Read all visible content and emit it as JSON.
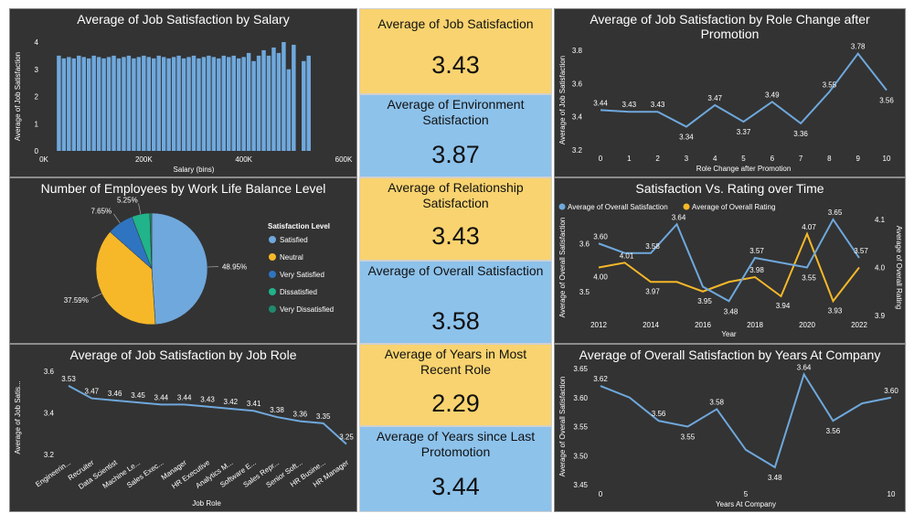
{
  "colors": {
    "blue": "#6fa8dc",
    "yellow": "#f6b829",
    "card_yellow": "#f9d36f",
    "card_blue": "#8dc2eb",
    "dark": "#333333"
  },
  "cards": [
    {
      "title": "Average of Job Satisfaction",
      "value": "3.43",
      "color": "#f9d36f"
    },
    {
      "title": "Average of Environment Satisfaction",
      "value": "3.87",
      "color": "#8dc2eb"
    },
    {
      "title": "Average of Relationship Satisfaction",
      "value": "3.43",
      "color": "#f9d36f"
    },
    {
      "title": "Average of Overall Satisfaction",
      "value": "3.58",
      "color": "#8dc2eb"
    },
    {
      "title": "Average of Years in Most Recent Role",
      "value": "2.29",
      "color": "#f9d36f"
    },
    {
      "title": "Average of Years since Last Protomotion",
      "value": "3.44",
      "color": "#8dc2eb"
    }
  ],
  "chart_data": [
    {
      "type": "bar",
      "title": "Average of Job Satisfaction by Salary",
      "xlabel": "Salary (bins)",
      "ylabel": "Average of Job Satisfaction",
      "xlim": [
        0,
        600000
      ],
      "ylim": [
        0,
        4
      ],
      "xticks": [
        "0K",
        "200K",
        "400K",
        "600K"
      ],
      "yticks": [
        "0",
        "1",
        "2",
        "3",
        "4"
      ],
      "bin_width": 10000,
      "x": [
        30000,
        40000,
        50000,
        60000,
        70000,
        80000,
        90000,
        100000,
        110000,
        120000,
        130000,
        140000,
        150000,
        160000,
        170000,
        180000,
        190000,
        200000,
        210000,
        220000,
        230000,
        240000,
        250000,
        260000,
        270000,
        280000,
        290000,
        300000,
        310000,
        320000,
        330000,
        340000,
        350000,
        360000,
        370000,
        380000,
        390000,
        400000,
        410000,
        420000,
        430000,
        440000,
        450000,
        460000,
        470000,
        480000,
        490000,
        500000,
        520000,
        530000
      ],
      "values": [
        3.5,
        3.4,
        3.45,
        3.4,
        3.5,
        3.45,
        3.4,
        3.5,
        3.45,
        3.4,
        3.45,
        3.5,
        3.4,
        3.45,
        3.5,
        3.4,
        3.45,
        3.5,
        3.45,
        3.4,
        3.5,
        3.45,
        3.4,
        3.45,
        3.5,
        3.4,
        3.45,
        3.5,
        3.4,
        3.45,
        3.5,
        3.45,
        3.4,
        3.5,
        3.45,
        3.5,
        3.4,
        3.45,
        3.6,
        3.3,
        3.5,
        3.7,
        3.5,
        3.8,
        3.6,
        4.0,
        3.0,
        3.9,
        3.3,
        3.5
      ]
    },
    {
      "type": "line",
      "title": "Average of Job Satisfaction by Role Change after Promotion",
      "xlabel": "Role Change after Promotion",
      "ylabel": "Average of Job Satisfaction",
      "x": [
        0,
        1,
        2,
        3,
        4,
        5,
        6,
        7,
        8,
        9,
        10
      ],
      "values": [
        3.44,
        3.43,
        3.43,
        3.34,
        3.47,
        3.37,
        3.49,
        3.36,
        3.55,
        3.78,
        3.56
      ],
      "labels": [
        "3.44",
        "3.43",
        "3.43",
        "3.34",
        "3.47",
        "3.37",
        "3.49",
        "3.36",
        "3.55",
        "3.78",
        "3.56"
      ],
      "ylim": [
        3.2,
        3.8
      ],
      "yticks": [
        "3.2",
        "3.4",
        "3.6",
        "3.8"
      ]
    },
    {
      "type": "pie",
      "title": "Number of Employees by Work Life Balance Level",
      "legend_title": "Satisfaction Level",
      "legend_position": "right",
      "slices": [
        {
          "name": "Satisfied",
          "value": 48.95,
          "label": "48.95%",
          "color": "#6fa8dc"
        },
        {
          "name": "Neutral",
          "value": 37.59,
          "label": "37.59%",
          "color": "#f6b829"
        },
        {
          "name": "Very Satisfied",
          "value": 7.65,
          "label": "7.65%",
          "color": "#2f74c0"
        },
        {
          "name": "Dissatisfied",
          "value": 5.25,
          "label": "5.25%",
          "color": "#21b38a"
        },
        {
          "name": "Very Dissatisfied",
          "value": 0.56,
          "label": "",
          "color": "#1f8a6e"
        }
      ]
    },
    {
      "type": "line",
      "title": "Satisfaction Vs. Rating over Time",
      "xlabel": "Year",
      "ylabel": "Average of Overall Satisfaction",
      "y2label": "Average of Overall Rating",
      "x": [
        2012,
        2013,
        2014,
        2015,
        2016,
        2017,
        2018,
        2019,
        2020,
        2021,
        2022
      ],
      "xticks": [
        "2012",
        "2014",
        "2016",
        "2018",
        "2020",
        "2022"
      ],
      "ylim": [
        3.45,
        3.65
      ],
      "yticks": [
        "3.5",
        "3.6"
      ],
      "y2lim": [
        3.9,
        4.1
      ],
      "y2ticks": [
        "3.9",
        "4.0",
        "4.1"
      ],
      "series": [
        {
          "name": "Average of Overall Satisfaction",
          "color": "#6fa8dc",
          "values": [
            3.6,
            3.58,
            3.58,
            3.64,
            3.51,
            3.48,
            3.57,
            3.56,
            3.55,
            3.65,
            3.57
          ],
          "labels": [
            "3.60",
            "",
            "3.58",
            "3.64",
            "",
            "3.48",
            "3.57",
            "",
            "3.55",
            "3.65",
            "3.57"
          ]
        },
        {
          "name": "Average of Overall Rating",
          "color": "#f6b829",
          "values": [
            4.0,
            4.01,
            3.97,
            3.97,
            3.95,
            3.97,
            3.98,
            3.94,
            4.07,
            3.93,
            4.0
          ],
          "labels": [
            "4.00",
            "4.01",
            "3.97",
            "",
            "3.95",
            "",
            "3.98",
            "3.94",
            "4.07",
            "3.93",
            ""
          ]
        }
      ]
    },
    {
      "type": "line",
      "title": "Average of Job Satisfaction by Job Role",
      "xlabel": "Job Role",
      "ylabel": "Average of Job Satis...",
      "categories": [
        "Engineerin...",
        "Recruiter",
        "Data Scientist",
        "Machine Le...",
        "Sales Exec...",
        "Manager",
        "HR Executive",
        "Analytics M...",
        "Software E...",
        "Sales Repr...",
        "Senior Soft...",
        "HR Busine...",
        "HR Manager"
      ],
      "values": [
        3.53,
        3.47,
        3.46,
        3.45,
        3.44,
        3.44,
        3.43,
        3.42,
        3.41,
        3.38,
        3.36,
        3.35,
        3.25
      ],
      "labels": [
        "3.53",
        "3.47",
        "3.46",
        "3.45",
        "3.44",
        "3.44",
        "3.43",
        "3.42",
        "3.41",
        "3.38",
        "3.36",
        "3.35",
        "3.25"
      ],
      "ylim": [
        3.2,
        3.6
      ],
      "yticks": [
        "3.2",
        "3.4",
        "3.6"
      ]
    },
    {
      "type": "line",
      "title": "Average of Overall Satisfaction by Years At Company",
      "xlabel": "Years At Company",
      "ylabel": "Average of Overall Satisfaction",
      "x": [
        0,
        1,
        2,
        3,
        4,
        5,
        6,
        7,
        8,
        9,
        10
      ],
      "values": [
        3.62,
        3.6,
        3.56,
        3.55,
        3.58,
        3.51,
        3.48,
        3.64,
        3.56,
        3.59,
        3.6
      ],
      "labels": [
        "3.62",
        "",
        "3.56",
        "3.55",
        "3.58",
        "",
        "3.48",
        "3.64",
        "3.56",
        "",
        "3.60"
      ],
      "ylim": [
        3.45,
        3.65
      ],
      "yticks": [
        "3.45",
        "3.50",
        "3.55",
        "3.60",
        "3.65"
      ],
      "xticks": [
        "0",
        "5",
        "10"
      ]
    }
  ]
}
